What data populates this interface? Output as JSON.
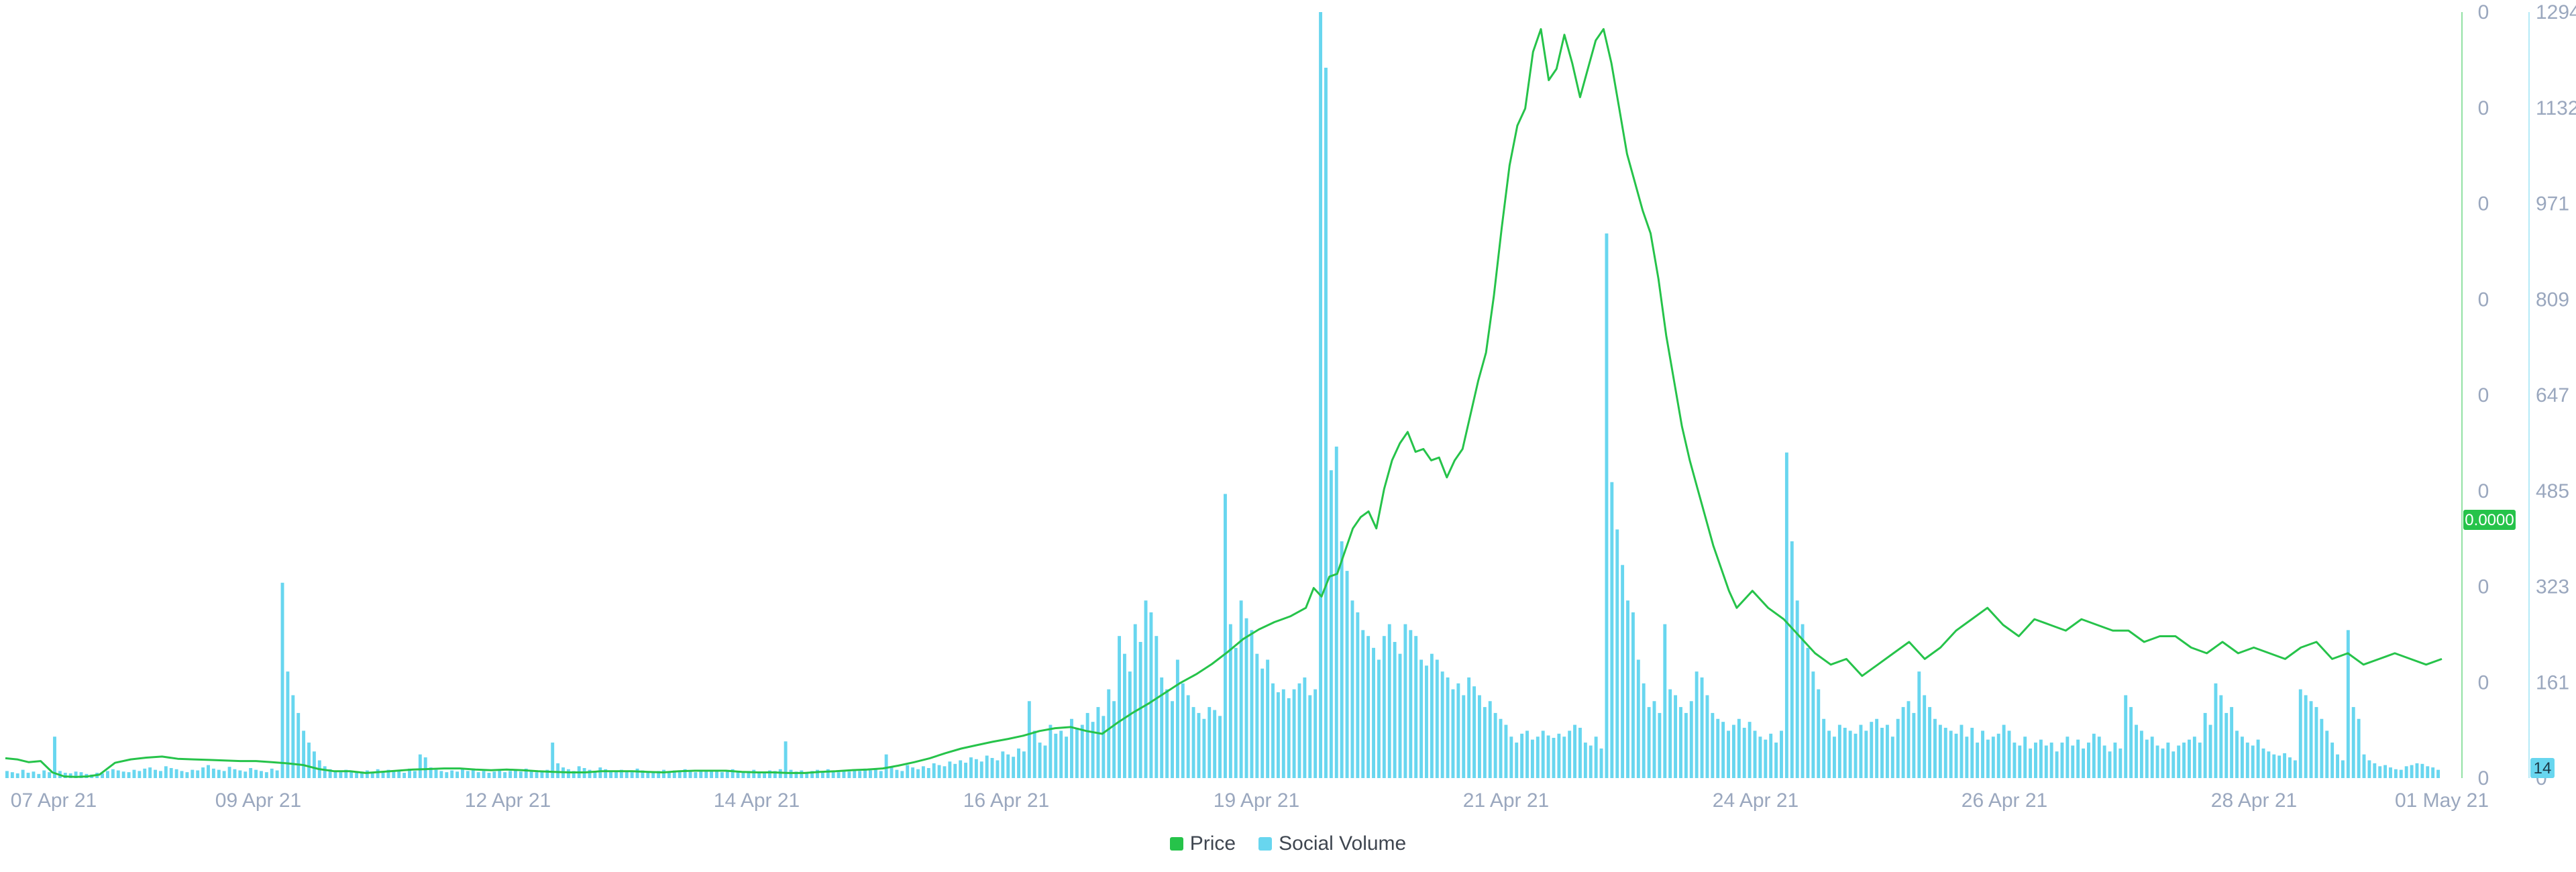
{
  "colors": {
    "price": "#26c34a",
    "social": "#68d6ef",
    "axis_text": "#9aa7be"
  },
  "legend": {
    "price": "Price",
    "social": "Social Volume"
  },
  "price_badge": "0.0000",
  "social_badge": "14",
  "chart_data": {
    "type": "bar+line",
    "x_tick_labels": [
      "07 Apr 21",
      "09 Apr 21",
      "12 Apr 21",
      "14 Apr 21",
      "16 Apr 21",
      "19 Apr 21",
      "21 Apr 21",
      "24 Apr 21",
      "26 Apr 21",
      "28 Apr 21",
      "01 May 21"
    ],
    "price_axis": {
      "tick_labels": [
        "0",
        "0",
        "0",
        "0",
        "0",
        "0",
        "0",
        "0",
        "0"
      ]
    },
    "social_axis": {
      "tick_labels": [
        "1294",
        "1132",
        "971",
        "809",
        "647",
        "485",
        "323",
        "161",
        "0"
      ],
      "ylim": [
        0,
        1294
      ]
    },
    "series": [
      {
        "name": "Price",
        "type": "line",
        "points": [
          [
            0,
            0.035
          ],
          [
            3,
            0.033
          ],
          [
            6,
            0.028
          ],
          [
            9,
            0.03
          ],
          [
            12,
            0.01
          ],
          [
            15,
            0.003
          ],
          [
            18,
            0.002
          ],
          [
            21,
            0.003
          ],
          [
            24,
            0.006
          ],
          [
            28,
            0.027
          ],
          [
            32,
            0.033
          ],
          [
            36,
            0.036
          ],
          [
            40,
            0.038
          ],
          [
            44,
            0.034
          ],
          [
            48,
            0.033
          ],
          [
            52,
            0.032
          ],
          [
            56,
            0.031
          ],
          [
            60,
            0.03
          ],
          [
            64,
            0.03
          ],
          [
            68,
            0.028
          ],
          [
            72,
            0.026
          ],
          [
            76,
            0.023
          ],
          [
            80,
            0.016
          ],
          [
            84,
            0.012
          ],
          [
            88,
            0.012
          ],
          [
            92,
            0.009
          ],
          [
            96,
            0.011
          ],
          [
            100,
            0.013
          ],
          [
            104,
            0.015
          ],
          [
            108,
            0.016
          ],
          [
            112,
            0.017
          ],
          [
            116,
            0.017
          ],
          [
            120,
            0.015
          ],
          [
            124,
            0.014
          ],
          [
            128,
            0.015
          ],
          [
            132,
            0.014
          ],
          [
            136,
            0.012
          ],
          [
            140,
            0.011
          ],
          [
            144,
            0.01
          ],
          [
            148,
            0.01
          ],
          [
            152,
            0.012
          ],
          [
            156,
            0.012
          ],
          [
            160,
            0.012
          ],
          [
            164,
            0.011
          ],
          [
            168,
            0.01
          ],
          [
            172,
            0.012
          ],
          [
            176,
            0.013
          ],
          [
            180,
            0.013
          ],
          [
            184,
            0.013
          ],
          [
            188,
            0.011
          ],
          [
            192,
            0.01
          ],
          [
            196,
            0.01
          ],
          [
            200,
            0.009
          ],
          [
            204,
            0.009
          ],
          [
            208,
            0.011
          ],
          [
            212,
            0.012
          ],
          [
            216,
            0.014
          ],
          [
            220,
            0.015
          ],
          [
            224,
            0.017
          ],
          [
            228,
            0.022
          ],
          [
            232,
            0.028
          ],
          [
            236,
            0.035
          ],
          [
            240,
            0.044
          ],
          [
            244,
            0.052
          ],
          [
            248,
            0.058
          ],
          [
            252,
            0.064
          ],
          [
            256,
            0.069
          ],
          [
            260,
            0.075
          ],
          [
            264,
            0.083
          ],
          [
            268,
            0.088
          ],
          [
            272,
            0.09
          ],
          [
            276,
            0.083
          ],
          [
            280,
            0.078
          ],
          [
            284,
            0.098
          ],
          [
            288,
            0.116
          ],
          [
            292,
            0.132
          ],
          [
            296,
            0.15
          ],
          [
            300,
            0.168
          ],
          [
            304,
            0.183
          ],
          [
            308,
            0.201
          ],
          [
            312,
            0.222
          ],
          [
            316,
            0.245
          ],
          [
            320,
            0.262
          ],
          [
            324,
            0.275
          ],
          [
            328,
            0.285
          ],
          [
            332,
            0.3
          ],
          [
            334,
            0.335
          ],
          [
            336,
            0.32
          ],
          [
            338,
            0.355
          ],
          [
            340,
            0.36
          ],
          [
            342,
            0.4
          ],
          [
            344,
            0.44
          ],
          [
            346,
            0.46
          ],
          [
            348,
            0.47
          ],
          [
            350,
            0.44
          ],
          [
            352,
            0.51
          ],
          [
            354,
            0.56
          ],
          [
            356,
            0.59
          ],
          [
            358,
            0.61
          ],
          [
            360,
            0.575
          ],
          [
            362,
            0.58
          ],
          [
            364,
            0.56
          ],
          [
            366,
            0.565
          ],
          [
            368,
            0.53
          ],
          [
            370,
            0.56
          ],
          [
            372,
            0.58
          ],
          [
            374,
            0.64
          ],
          [
            376,
            0.7
          ],
          [
            378,
            0.75
          ],
          [
            380,
            0.85
          ],
          [
            382,
            0.97
          ],
          [
            384,
            1.08
          ],
          [
            386,
            1.15
          ],
          [
            388,
            1.18
          ],
          [
            390,
            1.28
          ],
          [
            392,
            1.32
          ],
          [
            394,
            1.23
          ],
          [
            396,
            1.25
          ],
          [
            398,
            1.31
          ],
          [
            400,
            1.26
          ],
          [
            402,
            1.2
          ],
          [
            404,
            1.25
          ],
          [
            406,
            1.3
          ],
          [
            408,
            1.32
          ],
          [
            410,
            1.26
          ],
          [
            412,
            1.18
          ],
          [
            414,
            1.1
          ],
          [
            416,
            1.05
          ],
          [
            418,
            1.0
          ],
          [
            420,
            0.96
          ],
          [
            422,
            0.88
          ],
          [
            424,
            0.78
          ],
          [
            426,
            0.7
          ],
          [
            428,
            0.62
          ],
          [
            430,
            0.56
          ],
          [
            432,
            0.51
          ],
          [
            434,
            0.46
          ],
          [
            436,
            0.41
          ],
          [
            438,
            0.37
          ],
          [
            440,
            0.33
          ],
          [
            442,
            0.3
          ],
          [
            446,
            0.33
          ],
          [
            450,
            0.3
          ],
          [
            454,
            0.28
          ],
          [
            458,
            0.25
          ],
          [
            462,
            0.22
          ],
          [
            466,
            0.2
          ],
          [
            470,
            0.21
          ],
          [
            474,
            0.18
          ],
          [
            478,
            0.2
          ],
          [
            482,
            0.22
          ],
          [
            486,
            0.24
          ],
          [
            490,
            0.21
          ],
          [
            494,
            0.23
          ],
          [
            498,
            0.26
          ],
          [
            502,
            0.28
          ],
          [
            506,
            0.3
          ],
          [
            510,
            0.27
          ],
          [
            514,
            0.25
          ],
          [
            518,
            0.28
          ],
          [
            522,
            0.27
          ],
          [
            526,
            0.26
          ],
          [
            530,
            0.28
          ],
          [
            534,
            0.27
          ],
          [
            538,
            0.26
          ],
          [
            542,
            0.26
          ],
          [
            546,
            0.24
          ],
          [
            550,
            0.25
          ],
          [
            554,
            0.25
          ],
          [
            558,
            0.23
          ],
          [
            562,
            0.22
          ],
          [
            566,
            0.24
          ],
          [
            570,
            0.22
          ],
          [
            574,
            0.23
          ],
          [
            578,
            0.22
          ],
          [
            582,
            0.21
          ],
          [
            586,
            0.23
          ],
          [
            590,
            0.24
          ],
          [
            594,
            0.21
          ],
          [
            598,
            0.22
          ],
          [
            602,
            0.2
          ],
          [
            606,
            0.21
          ],
          [
            610,
            0.22
          ],
          [
            614,
            0.21
          ],
          [
            618,
            0.2
          ],
          [
            622,
            0.21
          ]
        ]
      },
      {
        "name": "Social Volume",
        "type": "bar",
        "values": [
          12,
          10,
          8,
          14,
          9,
          11,
          7,
          13,
          10,
          70,
          12,
          9,
          8,
          11,
          10,
          7,
          6,
          9,
          8,
          12,
          15,
          13,
          11,
          10,
          14,
          12,
          16,
          18,
          14,
          12,
          20,
          17,
          15,
          12,
          10,
          14,
          13,
          18,
          22,
          16,
          14,
          12,
          19,
          15,
          13,
          11,
          17,
          14,
          12,
          10,
          16,
          13,
          330,
          180,
          140,
          110,
          80,
          60,
          45,
          30,
          20,
          15,
          12,
          10,
          14,
          12,
          9,
          11,
          13,
          10,
          15,
          12,
          14,
          11,
          13,
          9,
          16,
          12,
          40,
          35,
          18,
          14,
          12,
          10,
          13,
          11,
          15,
          12,
          14,
          10,
          12,
          9,
          11,
          13,
          10,
          12,
          14,
          11,
          16,
          12,
          10,
          13,
          14,
          60,
          25,
          18,
          15,
          12,
          20,
          17,
          14,
          12,
          18,
          15,
          13,
          11,
          14,
          12,
          10,
          16,
          13,
          11,
          9,
          12,
          14,
          10,
          13,
          11,
          15,
          12,
          10,
          14,
          12,
          11,
          13,
          10,
          12,
          15,
          11,
          9,
          12,
          14,
          10,
          11,
          13,
          12,
          15,
          62,
          14,
          11,
          13,
          10,
          12,
          14,
          11,
          15,
          12,
          10,
          13,
          11,
          14,
          12,
          16,
          13,
          15,
          12,
          40,
          18,
          14,
          12,
          22,
          18,
          15,
          20,
          17,
          25,
          22,
          20,
          28,
          24,
          30,
          26,
          35,
          32,
          28,
          38,
          34,
          30,
          45,
          40,
          36,
          50,
          45,
          130,
          80,
          60,
          55,
          90,
          75,
          80,
          70,
          100,
          85,
          90,
          110,
          95,
          120,
          105,
          150,
          130,
          240,
          210,
          180,
          260,
          230,
          300,
          280,
          240,
          170,
          150,
          130,
          200,
          160,
          140,
          120,
          110,
          100,
          120,
          115,
          105,
          480,
          260,
          220,
          300,
          270,
          250,
          210,
          185,
          200,
          160,
          145,
          150,
          135,
          150,
          160,
          170,
          140,
          150,
          1300,
          1200,
          520,
          560,
          400,
          350,
          300,
          280,
          250,
          240,
          220,
          200,
          240,
          260,
          230,
          210,
          260,
          250,
          240,
          200,
          190,
          210,
          200,
          180,
          170,
          150,
          160,
          140,
          170,
          155,
          140,
          120,
          130,
          110,
          100,
          90,
          70,
          60,
          75,
          80,
          65,
          70,
          80,
          72,
          68,
          75,
          70,
          80,
          90,
          85,
          60,
          55,
          70,
          50,
          920,
          500,
          420,
          360,
          300,
          280,
          200,
          160,
          120,
          130,
          110,
          260,
          150,
          140,
          120,
          110,
          130,
          180,
          170,
          140,
          110,
          100,
          95,
          80,
          90,
          100,
          85,
          95,
          80,
          70,
          65,
          75,
          60,
          80,
          550,
          400,
          300,
          260,
          220,
          180,
          150,
          100,
          80,
          70,
          90,
          85,
          80,
          75,
          90,
          80,
          95,
          100,
          85,
          90,
          70,
          100,
          120,
          130,
          110,
          180,
          140,
          120,
          100,
          90,
          85,
          80,
          75,
          90,
          70,
          85,
          60,
          80,
          65,
          70,
          75,
          90,
          80,
          60,
          55,
          70,
          50,
          60,
          65,
          55,
          60,
          45,
          60,
          70,
          55,
          65,
          50,
          60,
          75,
          70,
          55,
          45,
          60,
          50,
          140,
          120,
          90,
          80,
          65,
          70,
          55,
          50,
          60,
          45,
          55,
          60,
          65,
          70,
          60,
          110,
          90,
          160,
          140,
          110,
          120,
          80,
          70,
          60,
          55,
          65,
          50,
          45,
          40,
          38,
          42,
          35,
          30,
          150,
          140,
          130,
          120,
          100,
          80,
          60,
          40,
          30,
          250,
          120,
          100,
          40,
          30,
          25,
          20,
          22,
          18,
          15,
          14,
          20,
          22,
          25,
          24,
          20,
          18,
          14
        ]
      }
    ]
  }
}
